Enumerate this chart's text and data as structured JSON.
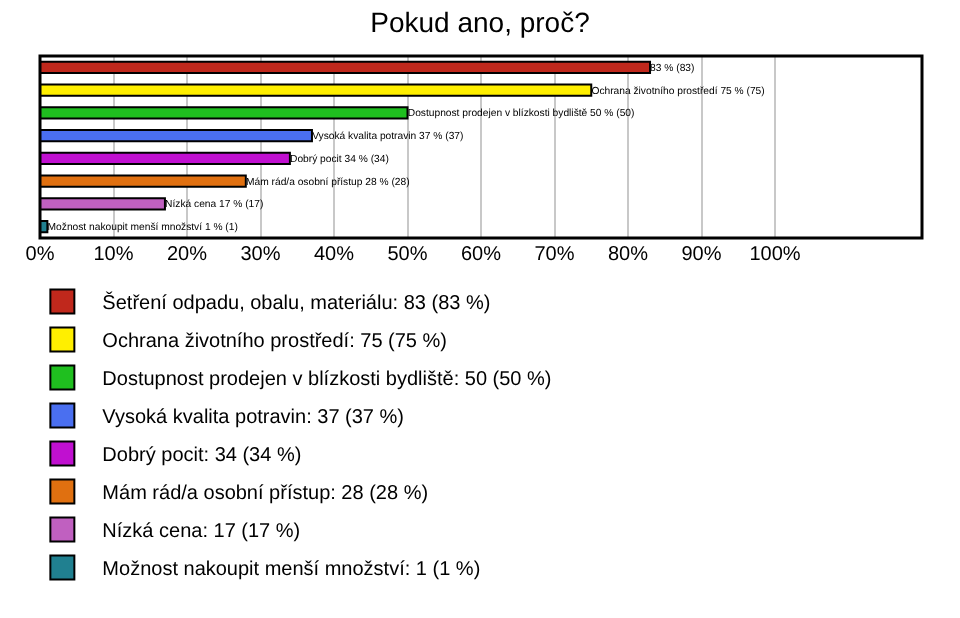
{
  "chart_data": {
    "type": "bar",
    "orientation": "horizontal",
    "title": "Pokud ano, proč?",
    "categories": [
      null,
      null,
      null,
      null,
      null,
      null,
      null,
      null
    ],
    "series": [
      {
        "name": "Šetření odpadu, obalu, materiálu: 83 (83 %)",
        "color": "#c0281c",
        "values": [
          83,
          null,
          null,
          null,
          null,
          null,
          null,
          null
        ],
        "value_labels": [
          "83 % (83)",
          null,
          null,
          null,
          null,
          null,
          null,
          null
        ]
      },
      {
        "name": "Ochrana životního prostředí: 75 (75 %)",
        "color": "#ffef00",
        "values": [
          null,
          75,
          null,
          null,
          null,
          null,
          null,
          null
        ],
        "value_labels": [
          null,
          "Ochrana životního prostředí 75 % (75)",
          null,
          null,
          null,
          null,
          null,
          null
        ]
      },
      {
        "name": "Dostupnost prodejen v blízkosti bydliště: 50 (50 %)",
        "color": "#1fbf1f",
        "values": [
          null,
          null,
          50,
          null,
          null,
          null,
          null,
          null
        ],
        "value_labels": [
          null,
          null,
          "Dostupnost prodejen v blízkosti bydliště 50 % (50)",
          null,
          null,
          null,
          null,
          null
        ]
      },
      {
        "name": "Vysoká kvalita potravin: 37 (37 %)",
        "color": "#4a6ff0",
        "values": [
          null,
          null,
          null,
          37,
          null,
          null,
          null,
          null
        ],
        "value_labels": [
          null,
          null,
          null,
          "Vysoká kvalita potravin 37 % (37)",
          null,
          null,
          null,
          null
        ]
      },
      {
        "name": "Dobrý pocit: 34 (34 %)",
        "color": "#c010d0",
        "values": [
          null,
          null,
          null,
          null,
          34,
          null,
          null,
          null
        ],
        "value_labels": [
          null,
          null,
          null,
          null,
          "Dobrý pocit 34 % (34)",
          null,
          null,
          null
        ]
      },
      {
        "name": "Mám rád/a osobní přístup: 28 (28 %)",
        "color": "#e07010",
        "values": [
          null,
          null,
          null,
          null,
          null,
          28,
          null,
          null
        ],
        "value_labels": [
          null,
          null,
          null,
          null,
          null,
          "Mám rád/a osobní přístup 28 % (28)",
          null,
          null
        ]
      },
      {
        "name": "Nízká cena: 17 (17 %)",
        "color": "#c060c0",
        "values": [
          null,
          null,
          null,
          null,
          null,
          null,
          17,
          null
        ],
        "value_labels": [
          null,
          null,
          null,
          null,
          null,
          null,
          "Nízká cena 17 % (17)",
          null
        ]
      },
      {
        "name": "Možnost nakoupit menší množství: 1 (1 %)",
        "color": "#208090",
        "values": [
          null,
          null,
          null,
          null,
          null,
          null,
          null,
          1
        ],
        "value_labels": [
          null,
          null,
          null,
          null,
          null,
          null,
          null,
          "Možnost nakoupit menší množství 1 % (1)"
        ]
      }
    ],
    "xlim": [
      0,
      120
    ],
    "xticks": [
      {
        "value": 0,
        "label": "0%"
      },
      {
        "value": 10,
        "label": "10%"
      },
      {
        "value": 20,
        "label": "20%"
      },
      {
        "value": 30,
        "label": "30%"
      },
      {
        "value": 40,
        "label": "40%"
      },
      {
        "value": 50,
        "label": "50%"
      },
      {
        "value": 60,
        "label": "60%"
      },
      {
        "value": 70,
        "label": "70%"
      },
      {
        "value": 80,
        "label": "80%"
      },
      {
        "value": 90,
        "label": "90%"
      },
      {
        "value": 100,
        "label": "100%"
      }
    ],
    "grid": "x",
    "legend": "bottom",
    "tick_labels": "x"
  }
}
